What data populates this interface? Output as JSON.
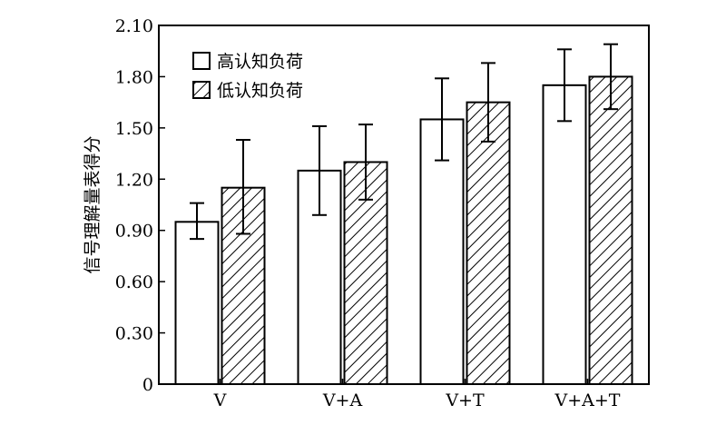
{
  "chart_data": {
    "type": "bar",
    "categories": [
      "V",
      "V+A",
      "V+T",
      "V+A+T"
    ],
    "ylabel": "信号理解量表得分",
    "xlabel": "",
    "ylim": [
      0,
      2.1
    ],
    "yticks": [
      "0",
      "0.30",
      "0.60",
      "0.90",
      "1.20",
      "1.50",
      "1.80",
      "2.10"
    ],
    "ytick_values": [
      0,
      0.3,
      0.6,
      0.9,
      1.2,
      1.5,
      1.8,
      2.1
    ],
    "legend_position": "top-left",
    "grid": false,
    "series": [
      {
        "name": "高认知负荷",
        "pattern": "solid-white",
        "values": [
          0.95,
          1.25,
          1.55,
          1.75
        ],
        "error_low": [
          0.85,
          0.99,
          1.31,
          1.54
        ],
        "error_high": [
          1.06,
          1.51,
          1.79,
          1.96
        ]
      },
      {
        "name": "低认知负荷",
        "pattern": "diagonal-hatch",
        "values": [
          1.15,
          1.3,
          1.65,
          1.8
        ],
        "error_low": [
          0.88,
          1.08,
          1.42,
          1.61
        ],
        "error_high": [
          1.43,
          1.52,
          1.88,
          1.99
        ]
      }
    ]
  }
}
